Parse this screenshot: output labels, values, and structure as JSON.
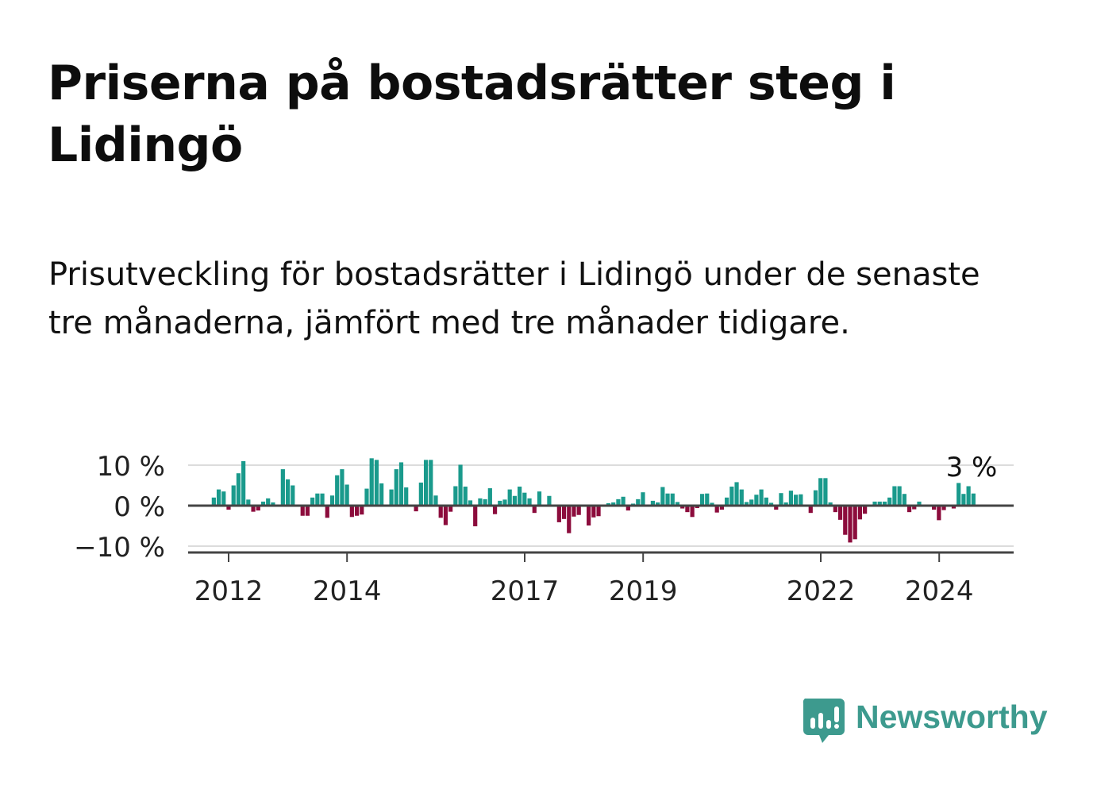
{
  "title": "Priserna på bostadsrätter steg i Lidingö",
  "subtitle": "Prisutveckling för bostadsrätter i Lidingö under de senaste tre månaderna, jämfört med tre månader tidigare.",
  "brand": {
    "name": "Newsworthy",
    "color": "#3d9a8e"
  },
  "colors": {
    "positive": "#1a9a8c",
    "negative": "#8c0c3c",
    "grid": "#dcdcdc",
    "axis": "#444444"
  },
  "chart_data": {
    "type": "bar",
    "title": "Prisutveckling för bostadsrätter i Lidingö",
    "xlabel": "",
    "ylabel": "",
    "ylim": [
      -11,
      11
    ],
    "yticks": [
      10,
      0,
      -10
    ],
    "ytick_labels": [
      "10 %",
      "0 %",
      "−10 %"
    ],
    "xticks": [
      2012,
      2014,
      2017,
      2019,
      2022,
      2024
    ],
    "xtick_labels": [
      "2012",
      "2014",
      "2017",
      "2019",
      "2022",
      "2024"
    ],
    "x_start": 2011.75,
    "bar_step_years": 0.0833,
    "last_value_label": "3 %",
    "values": [
      2.0,
      4.0,
      3.5,
      -1.0,
      5.0,
      8.0,
      11.0,
      1.5,
      -1.5,
      -1.2,
      1.0,
      1.8,
      0.8,
      0,
      9.0,
      6.5,
      5.0,
      0,
      -2.5,
      -2.5,
      2.0,
      3.0,
      3.0,
      -3.0,
      2.5,
      7.5,
      9.0,
      5.2,
      -2.8,
      -2.5,
      -2.2,
      4.2,
      11.7,
      11.3,
      5.5,
      0,
      4.0,
      9.0,
      10.7,
      4.5,
      0,
      -1.4,
      5.7,
      11.3,
      11.3,
      2.5,
      -3.0,
      -4.8,
      -1.5,
      4.8,
      10.1,
      4.7,
      1.3,
      -5.1,
      1.8,
      1.6,
      4.3,
      -2.1,
      1.2,
      1.5,
      4.0,
      2.4,
      4.7,
      3.2,
      1.8,
      -1.8,
      3.5,
      0,
      2.4,
      0,
      -4.1,
      -3.3,
      -6.8,
      -2.7,
      -2.3,
      0,
      -4.9,
      -2.9,
      -2.6,
      0,
      0.6,
      0.8,
      1.6,
      2.2,
      -1.2,
      0.5,
      1.6,
      3.3,
      0,
      1.2,
      0.8,
      4.6,
      3.0,
      3.0,
      0.9,
      -0.7,
      -1.6,
      -2.8,
      -0.6,
      2.9,
      3.0,
      0.7,
      -1.7,
      -1.0,
      2.0,
      4.7,
      5.8,
      4.0,
      0.9,
      1.5,
      2.7,
      4.0,
      2.0,
      0.7,
      -1.0,
      3.1,
      0.8,
      3.7,
      2.7,
      2.8,
      0,
      -1.8,
      3.8,
      6.8,
      6.8,
      0.8,
      -1.6,
      -3.5,
      -7.2,
      -9.1,
      -8.3,
      -3.4,
      -2.0,
      0,
      1.0,
      1.0,
      1.0,
      2.0,
      4.8,
      4.8,
      2.9,
      -1.6,
      -0.9,
      1.0,
      0,
      0,
      -1.0,
      -3.6,
      -1.1,
      0,
      -0.7,
      5.6,
      2.9,
      4.8,
      3.0
    ]
  }
}
